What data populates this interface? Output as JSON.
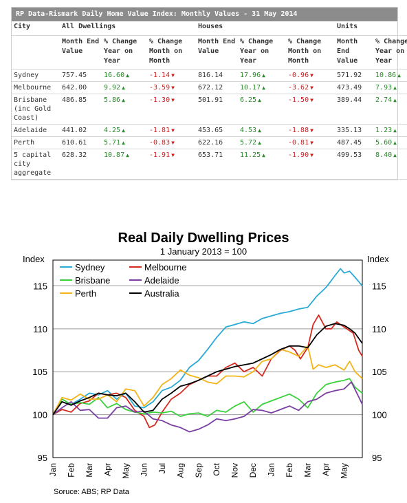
{
  "table": {
    "title": "RP Data-Rismark Daily Home Value Index: Monthly Values - 31 May 2014",
    "group_headers": [
      "City",
      "All Dwellings",
      "Houses",
      "Units"
    ],
    "sub_headers": [
      "Month End Value",
      "% Change Year on Year",
      "% Change Month on Month",
      "Month End Value",
      "% Change Year on Year",
      "% Change Month on Month",
      "Month End Value",
      "% Change Year on Year"
    ],
    "rows": [
      {
        "city": "Sydney",
        "cells": [
          "757.45",
          "16.60",
          "-1.14",
          "816.14",
          "17.96",
          "-0.96",
          "571.92",
          "10.86"
        ]
      },
      {
        "city": "Melbourne",
        "cells": [
          "642.00",
          "9.92",
          "-3.59",
          "672.12",
          "10.17",
          "-3.62",
          "473.49",
          "7.93"
        ]
      },
      {
        "city": "Brisbane (inc Gold Coast)",
        "cells": [
          "486.85",
          "5.86",
          "-1.30",
          "501.91",
          "6.25",
          "-1.50",
          "389.44",
          "2.74"
        ]
      },
      {
        "city": "Adelaide",
        "cells": [
          "441.02",
          "4.25",
          "-1.81",
          "453.65",
          "4.53",
          "-1.88",
          "335.13",
          "1.23"
        ]
      },
      {
        "city": "Perth",
        "cells": [
          "610.61",
          "5.71",
          "-0.83",
          "622.16",
          "5.72",
          "-0.81",
          "487.45",
          "5.60"
        ]
      },
      {
        "city": "5 capital city aggregate",
        "cells": [
          "628.32",
          "10.87",
          "-1.91",
          "653.71",
          "11.25",
          "-1.90",
          "499.53",
          "8.40"
        ]
      }
    ]
  },
  "colors": {
    "Sydney": "#29a9d6",
    "Melbourne": "#d42a1e",
    "Brisbane": "#39d139",
    "Adelaide": "#7a3ea3",
    "Perth": "#f2b418",
    "Australia": "#000000"
  },
  "chart_data": {
    "type": "line",
    "title": "Real Daily Dwelling Prices",
    "subtitle": "1 January  2013 = 100",
    "ylabel_left": "Index",
    "ylabel_right": "Index",
    "ylim": [
      95,
      118
    ],
    "yticks": [
      95,
      100,
      105,
      110,
      115
    ],
    "x_ticks": [
      "Jan",
      "Feb",
      "Mar",
      "Apr",
      "May",
      "Jun",
      "Jul",
      "Aug",
      "Sep",
      "Oct",
      "Nov",
      "Dec",
      "Jan",
      "Feb",
      "Mar",
      "Apr",
      "May"
    ],
    "x_range": [
      0,
      17
    ],
    "source": "Soruce: ABS; RP Data",
    "legend": "top-left, inside plot, two columns",
    "series": [
      {
        "name": "Sydney",
        "points": [
          [
            0,
            100
          ],
          [
            0.5,
            101.8
          ],
          [
            1,
            101.2
          ],
          [
            1.5,
            101.8
          ],
          [
            2,
            102.5
          ],
          [
            2.5,
            102.3
          ],
          [
            3,
            102.8
          ],
          [
            3.5,
            101.8
          ],
          [
            4,
            102.5
          ],
          [
            4.5,
            101
          ],
          [
            5,
            100.8
          ],
          [
            5.5,
            101.5
          ],
          [
            6,
            102.8
          ],
          [
            6.5,
            103.2
          ],
          [
            7,
            104
          ],
          [
            7.5,
            105.5
          ],
          [
            8,
            106.3
          ],
          [
            8.5,
            107.6
          ],
          [
            9,
            109
          ],
          [
            9.5,
            110.2
          ],
          [
            10,
            110.5
          ],
          [
            10.5,
            110.8
          ],
          [
            11,
            110.6
          ],
          [
            11.5,
            111.2
          ],
          [
            12,
            111.5
          ],
          [
            12.5,
            111.8
          ],
          [
            13,
            112
          ],
          [
            13.5,
            112.3
          ],
          [
            14,
            112.5
          ],
          [
            14.5,
            113.8
          ],
          [
            15,
            114.8
          ],
          [
            15.5,
            116.2
          ],
          [
            15.8,
            117
          ],
          [
            16,
            116.5
          ],
          [
            16.3,
            116.7
          ],
          [
            16.6,
            116
          ],
          [
            17,
            115
          ]
        ]
      },
      {
        "name": "Melbourne",
        "points": [
          [
            0,
            100
          ],
          [
            0.5,
            100.6
          ],
          [
            1,
            100.3
          ],
          [
            1.5,
            101.3
          ],
          [
            2,
            101.6
          ],
          [
            2.5,
            102.5
          ],
          [
            3,
            102.3
          ],
          [
            3.5,
            102.5
          ],
          [
            4,
            102
          ],
          [
            4.5,
            100.5
          ],
          [
            5,
            99.8
          ],
          [
            5.3,
            98.5
          ],
          [
            5.6,
            98.8
          ],
          [
            6,
            100.3
          ],
          [
            6.5,
            101.8
          ],
          [
            7,
            102.5
          ],
          [
            7.5,
            103.5
          ],
          [
            8,
            104
          ],
          [
            8.5,
            104.5
          ],
          [
            9,
            104.5
          ],
          [
            9.5,
            105.5
          ],
          [
            10,
            106
          ],
          [
            10.5,
            105
          ],
          [
            11,
            105.5
          ],
          [
            11.5,
            104.5
          ],
          [
            12,
            106.5
          ],
          [
            12.5,
            107.5
          ],
          [
            13,
            108
          ],
          [
            13.3,
            107.5
          ],
          [
            13.6,
            106.5
          ],
          [
            14,
            107.8
          ],
          [
            14.3,
            110.5
          ],
          [
            14.6,
            111.6
          ],
          [
            15,
            110
          ],
          [
            15.3,
            110
          ],
          [
            15.6,
            110.8
          ],
          [
            16,
            110.2
          ],
          [
            16.5,
            109.5
          ],
          [
            16.8,
            107.5
          ],
          [
            17,
            106.8
          ]
        ]
      },
      {
        "name": "Brisbane",
        "points": [
          [
            0,
            100
          ],
          [
            0.5,
            101.8
          ],
          [
            1,
            101.2
          ],
          [
            1.5,
            101.4
          ],
          [
            2,
            101.2
          ],
          [
            2.5,
            102
          ],
          [
            3,
            100.8
          ],
          [
            3.5,
            101.3
          ],
          [
            4,
            100.6
          ],
          [
            4.5,
            100.3
          ],
          [
            5,
            100.1
          ],
          [
            5.5,
            100.3
          ],
          [
            6,
            100.2
          ],
          [
            6.5,
            100.4
          ],
          [
            7,
            99.8
          ],
          [
            7.5,
            100.1
          ],
          [
            8,
            100.2
          ],
          [
            8.5,
            99.8
          ],
          [
            9,
            100.5
          ],
          [
            9.5,
            100.3
          ],
          [
            10,
            101
          ],
          [
            10.5,
            101.5
          ],
          [
            11,
            100.3
          ],
          [
            11.5,
            101.2
          ],
          [
            12,
            101.6
          ],
          [
            12.5,
            102
          ],
          [
            13,
            102.4
          ],
          [
            13.5,
            101.8
          ],
          [
            14,
            100.8
          ],
          [
            14.5,
            102.5
          ],
          [
            15,
            103.5
          ],
          [
            15.5,
            103.8
          ],
          [
            16,
            104
          ],
          [
            16.3,
            104.2
          ],
          [
            16.6,
            103.2
          ],
          [
            17,
            102.5
          ]
        ]
      },
      {
        "name": "Adelaide",
        "points": [
          [
            0,
            100
          ],
          [
            0.5,
            100.8
          ],
          [
            1,
            101.5
          ],
          [
            1.5,
            100.5
          ],
          [
            2,
            100.6
          ],
          [
            2.5,
            99.6
          ],
          [
            3,
            99.6
          ],
          [
            3.5,
            100.8
          ],
          [
            4,
            101
          ],
          [
            4.5,
            100.3
          ],
          [
            5,
            100.4
          ],
          [
            5.5,
            99.5
          ],
          [
            6,
            99.3
          ],
          [
            6.5,
            98.8
          ],
          [
            7,
            98.5
          ],
          [
            7.5,
            98
          ],
          [
            8,
            98.3
          ],
          [
            8.5,
            98.8
          ],
          [
            9,
            99.5
          ],
          [
            9.5,
            99.3
          ],
          [
            10,
            99.5
          ],
          [
            10.5,
            99.8
          ],
          [
            11,
            100.6
          ],
          [
            11.5,
            100.5
          ],
          [
            12,
            100.2
          ],
          [
            12.5,
            100.6
          ],
          [
            13,
            101
          ],
          [
            13.5,
            100.5
          ],
          [
            14,
            101.5
          ],
          [
            14.5,
            101.8
          ],
          [
            15,
            102.5
          ],
          [
            15.5,
            102.8
          ],
          [
            16,
            103
          ],
          [
            16.4,
            103.8
          ],
          [
            16.7,
            102.5
          ],
          [
            17,
            101.2
          ]
        ]
      },
      {
        "name": "Perth",
        "points": [
          [
            0,
            100
          ],
          [
            0.5,
            102
          ],
          [
            1,
            101.7
          ],
          [
            1.5,
            102.4
          ],
          [
            2,
            101.8
          ],
          [
            2.5,
            101.8
          ],
          [
            3,
            102.3
          ],
          [
            3.5,
            101.5
          ],
          [
            4,
            103
          ],
          [
            4.5,
            102.8
          ],
          [
            5,
            101
          ],
          [
            5.5,
            102
          ],
          [
            6,
            103.5
          ],
          [
            6.5,
            104.2
          ],
          [
            7,
            105.2
          ],
          [
            7.5,
            104.6
          ],
          [
            8,
            104.3
          ],
          [
            8.5,
            103.8
          ],
          [
            9,
            103.6
          ],
          [
            9.5,
            104.5
          ],
          [
            10,
            104.5
          ],
          [
            10.5,
            104.4
          ],
          [
            11,
            105
          ],
          [
            11.5,
            106.2
          ],
          [
            12,
            106.5
          ],
          [
            12.5,
            107.6
          ],
          [
            13,
            107.3
          ],
          [
            13.5,
            106.8
          ],
          [
            14,
            108
          ],
          [
            14.3,
            105.3
          ],
          [
            14.6,
            105.8
          ],
          [
            15,
            105.5
          ],
          [
            15.5,
            105.8
          ],
          [
            16,
            105.2
          ],
          [
            16.3,
            106.2
          ],
          [
            16.6,
            105
          ],
          [
            17,
            104.2
          ]
        ]
      },
      {
        "name": "Australia",
        "points": [
          [
            0,
            100
          ],
          [
            0.5,
            101.5
          ],
          [
            1,
            101.1
          ],
          [
            1.5,
            101.6
          ],
          [
            2,
            102
          ],
          [
            2.5,
            102.5
          ],
          [
            3,
            102.3
          ],
          [
            3.5,
            102.2
          ],
          [
            4,
            102.5
          ],
          [
            4.5,
            101.5
          ],
          [
            5,
            100.3
          ],
          [
            5.5,
            100.5
          ],
          [
            6,
            101.8
          ],
          [
            6.5,
            102.5
          ],
          [
            7,
            103.3
          ],
          [
            7.5,
            103.6
          ],
          [
            8,
            104
          ],
          [
            8.5,
            104.5
          ],
          [
            9,
            105
          ],
          [
            9.5,
            105.3
          ],
          [
            10,
            105.6
          ],
          [
            10.5,
            105.8
          ],
          [
            11,
            106
          ],
          [
            11.5,
            106.5
          ],
          [
            12,
            107
          ],
          [
            12.5,
            107.6
          ],
          [
            13,
            108
          ],
          [
            13.5,
            108
          ],
          [
            14,
            107.8
          ],
          [
            14.5,
            109.3
          ],
          [
            15,
            110.3
          ],
          [
            15.5,
            110.6
          ],
          [
            16,
            110.4
          ],
          [
            16.3,
            110
          ],
          [
            16.6,
            109.5
          ],
          [
            17,
            108.3
          ]
        ]
      }
    ]
  }
}
